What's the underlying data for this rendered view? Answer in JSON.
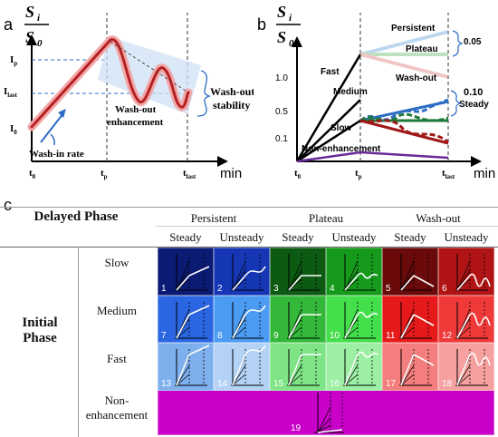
{
  "panel_a": {
    "label": "a",
    "y_top": "S",
    "y_top_sub": "i",
    "y_bot": "S",
    "y_bot_sub": "0",
    "x_unit": "min",
    "ticks_y": [
      {
        "main": "I",
        "sub": "p"
      },
      {
        "main": "I",
        "sub": "last"
      },
      {
        "main": "I",
        "sub": "0"
      }
    ],
    "ticks_x": [
      {
        "main": "t",
        "sub": "0"
      },
      {
        "main": "t",
        "sub": "p"
      },
      {
        "main": "t",
        "sub": "last"
      }
    ],
    "annot_washin": "Wash-in rate",
    "annot_enh_1": "Wash-out",
    "annot_enh_2": "enhancement",
    "annot_stab_1": "Wash-out",
    "annot_stab_2": "stability"
  },
  "panel_b": {
    "label": "b",
    "y_top": "S",
    "y_top_sub": "i",
    "y_bot": "S",
    "y_bot_sub": "0",
    "x_unit": "min",
    "y_ticks": [
      "1.0",
      "0.5",
      "0.1"
    ],
    "ticks_x": [
      {
        "main": "t",
        "sub": "0"
      },
      {
        "main": "t",
        "sub": "p"
      },
      {
        "main": "t",
        "sub": "last"
      }
    ],
    "lbl_fast": "Fast",
    "lbl_medium": "Medium",
    "lbl_slow": "Slow",
    "lbl_nonenh": "Non-enhancement",
    "lbl_persistent": "Persistent",
    "lbl_plateau": "Plateau",
    "lbl_washout": "Wash-out",
    "lbl_005": "0.05",
    "lbl_010": "0.10",
    "lbl_steady": "Steady"
  },
  "panel_c": {
    "label": "c",
    "delayed_phase": "Delayed Phase",
    "initial_phase_1": "Initial",
    "initial_phase_2": "Phase",
    "groups": [
      "Persistent",
      "Plateau",
      "Wash-out"
    ],
    "subs": [
      "Steady",
      "Unsteady",
      "Steady",
      "Unsteady",
      "Steady",
      "Unsteady"
    ],
    "rows": [
      "Slow",
      "Medium",
      "Fast"
    ],
    "nonenh_1": "Non-",
    "nonenh_2": "enhancement",
    "cell_numbers": [
      [
        "1",
        "2",
        "3",
        "4",
        "5",
        "6"
      ],
      [
        "7",
        "8",
        "9",
        "10",
        "11",
        "12"
      ],
      [
        "13",
        "14",
        "15",
        "16",
        "17",
        "18"
      ]
    ],
    "nonenh_number": "19",
    "cell_colors": [
      [
        "#0b1a73",
        "#1537b5",
        "#0d5a12",
        "#169a1c",
        "#6a0a0a",
        "#b11414"
      ],
      [
        "#2a66e2",
        "#4b9bf2",
        "#33b83a",
        "#44e04c",
        "#e61a1a",
        "#f03a3a"
      ],
      [
        "#7fb0ee",
        "#b3d2f6",
        "#7fe486",
        "#9cefa3",
        "#f47d7d",
        "#f7a0a0"
      ]
    ],
    "nonenh_color": "#c800c8"
  }
}
